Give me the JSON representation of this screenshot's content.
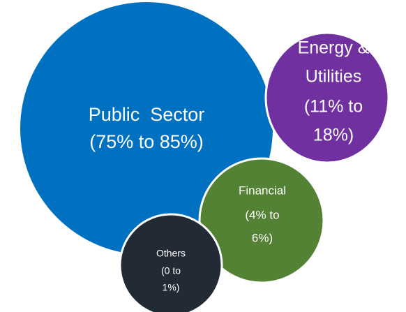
{
  "nodes": [
    {
      "lines": [
        "Public  Sector",
        "(75% to 85%)"
      ]
    },
    {
      "lines": [
        "Energy &",
        "Utilities",
        "(11% to",
        "18%)"
      ]
    },
    {
      "lines": [
        "Financial",
        "(4% to",
        "6%)"
      ]
    },
    {
      "lines": [
        "Others",
        "(0 to",
        "1%)"
      ]
    }
  ]
}
